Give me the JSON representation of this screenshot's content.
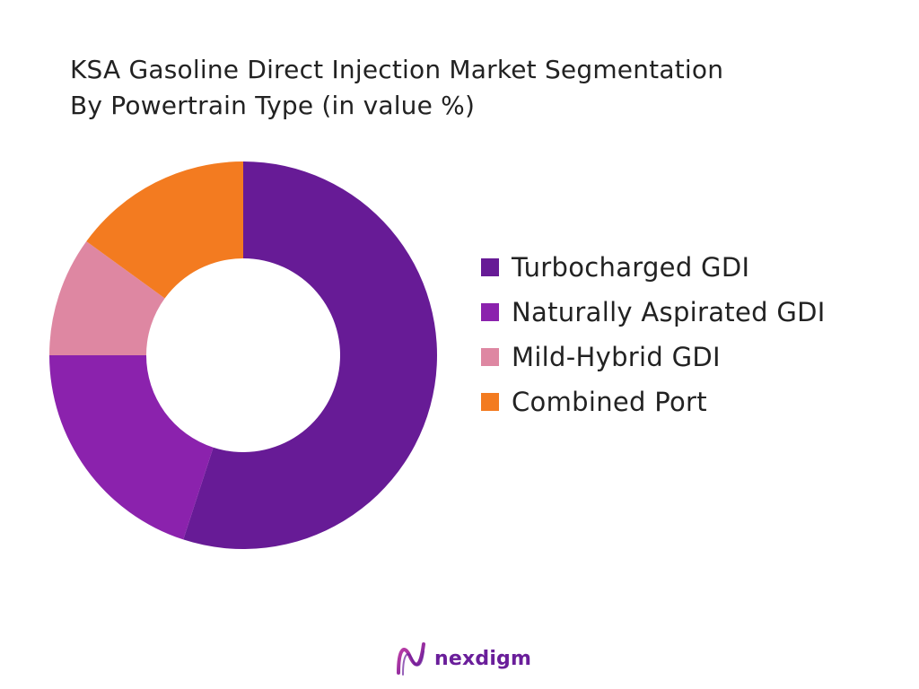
{
  "title_lines": [
    "KSA Gasoline Direct Injection Market Segmentation",
    "By Powertrain Type (in value %)"
  ],
  "brand": {
    "name": "nexdigm",
    "logo_icon": "nexdigm-logo-icon",
    "color": "#6a1e9a"
  },
  "chart_data": {
    "type": "pie",
    "donut": true,
    "title": "KSA Gasoline Direct Injection Market Segmentation By Powertrain Type (in value %)",
    "legend_position": "right",
    "start_angle_deg": 0,
    "direction": "clockwise",
    "series": [
      {
        "name": "Turbocharged GDI",
        "value": 55,
        "color": "#671b96"
      },
      {
        "name": "Naturally Aspirated GDI",
        "value": 20,
        "color": "#8b22ad"
      },
      {
        "name": "Mild-Hybrid GDI",
        "value": 10,
        "color": "#de87a2"
      },
      {
        "name": "Combined Port",
        "value": 15,
        "color": "#f37b20"
      }
    ]
  }
}
